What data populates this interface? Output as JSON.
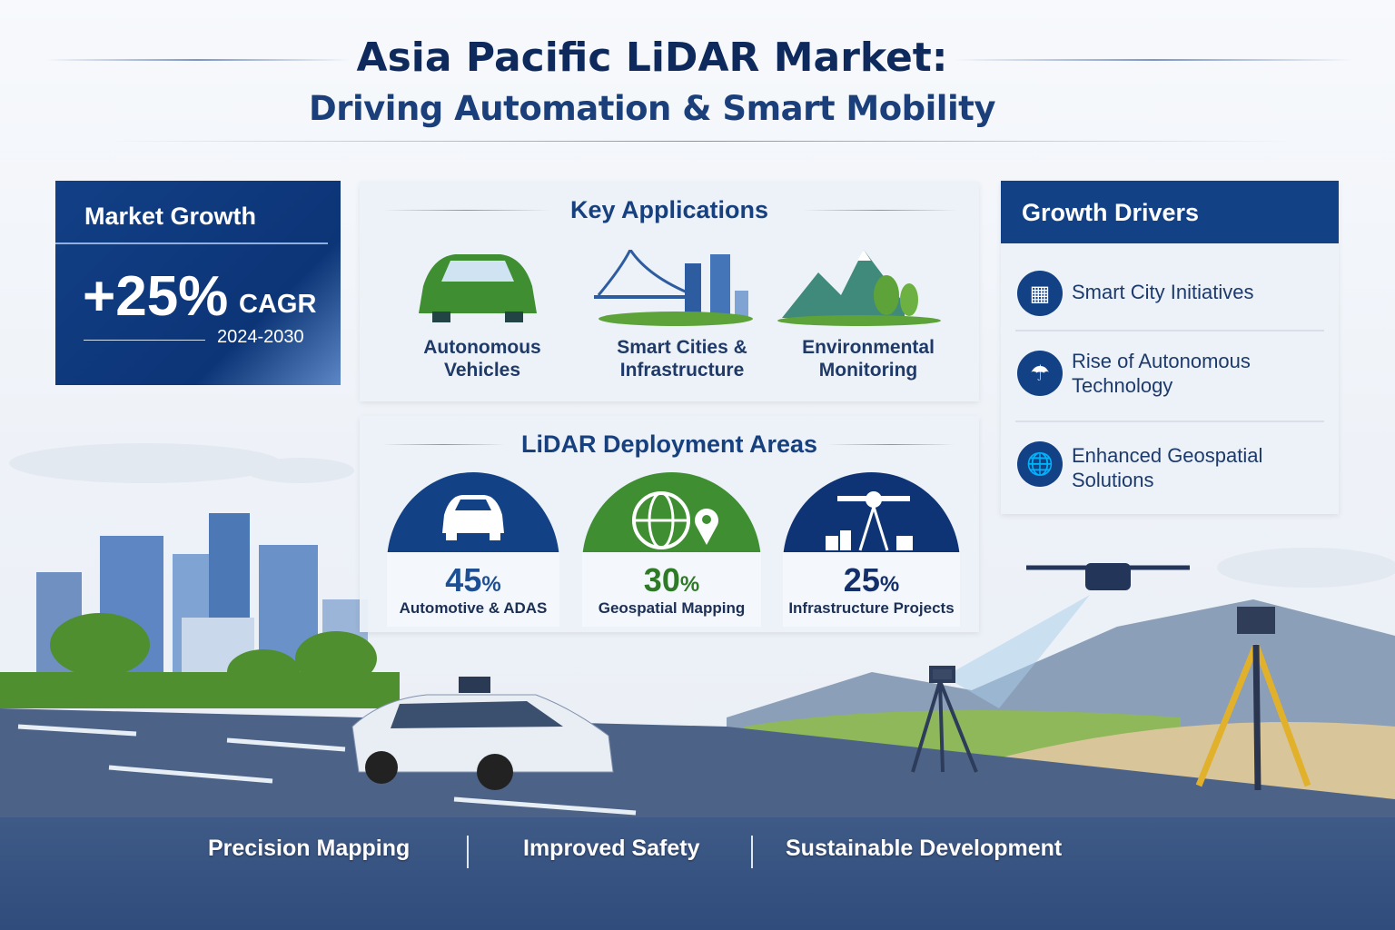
{
  "header": {
    "title": "Asia Pacific LiDAR Market:",
    "subtitle": "Driving Automation & Smart Mobility"
  },
  "market_growth": {
    "title": "Market Growth",
    "value": "+25%",
    "unit": "CAGR",
    "period": "2024-2030"
  },
  "key_applications": {
    "title": "Key Applications",
    "items": [
      {
        "icon": "car-icon",
        "line1": "Autonomous",
        "line2": "Vehicles"
      },
      {
        "icon": "bridge-city-icon",
        "line1": "Smart Cities &",
        "line2": "Infrastructure"
      },
      {
        "icon": "mountains-trees-icon",
        "line1": "Environmental",
        "line2": "Monitoring"
      }
    ]
  },
  "deployment": {
    "title": "LiDAR Deployment Areas",
    "items": [
      {
        "icon": "car-icon",
        "value": "45",
        "unit": "%",
        "label": "Automotive & ADAS",
        "color": "#124185"
      },
      {
        "icon": "globe-pin-icon",
        "value": "30",
        "unit": "%",
        "label": "Geospatial Mapping",
        "color": "#3f8f32"
      },
      {
        "icon": "surveying-scanner-icon",
        "value": "25",
        "unit": "%",
        "label": "Infrastructure Projects",
        "color": "#0f3475"
      }
    ]
  },
  "growth_drivers": {
    "title": "Growth Drivers",
    "items": [
      {
        "icon": "buildings-icon",
        "line1": "Smart City Initiatives",
        "line2": ""
      },
      {
        "icon": "lightbulb-icon",
        "line1": "Rise of Autonomous",
        "line2": "Technology"
      },
      {
        "icon": "globe-icon",
        "line1": "Enhanced Geospatial",
        "line2": "Solutions"
      }
    ]
  },
  "benefits": [
    "Precision Mapping",
    "Improved Safety",
    "Sustainable Development"
  ],
  "colors": {
    "navy": "#124185",
    "green": "#3f8f32",
    "title": "#0e2a5c"
  }
}
